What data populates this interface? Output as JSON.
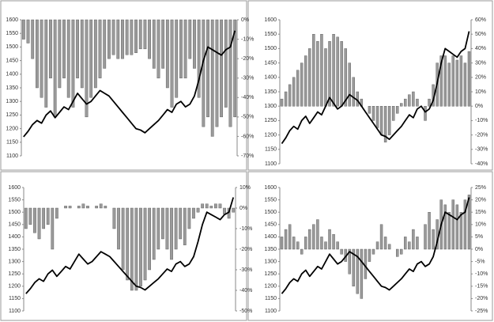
{
  "chart_data": [
    {
      "type": "combo",
      "ylim": [
        1100,
        1600
      ],
      "yticks": [
        1100,
        1150,
        1200,
        1250,
        1300,
        1350,
        1400,
        1450,
        1500,
        1550,
        1600
      ],
      "y2lim": [
        -70,
        0
      ],
      "y2ticks": [
        {
          "value": 0,
          "label": "0%"
        },
        {
          "value": -10,
          "label": "-10%"
        },
        {
          "value": -20,
          "label": "-20%"
        },
        {
          "value": -30,
          "label": "-30%"
        },
        {
          "value": -40,
          "label": "-40%"
        },
        {
          "value": -50,
          "label": "-50%"
        },
        {
          "value": -60,
          "label": "-60%"
        },
        {
          "value": -70,
          "label": "-70%"
        }
      ],
      "series": [
        {
          "type": "line",
          "color": "#000000",
          "values": [
            1170,
            1190,
            1215,
            1230,
            1220,
            1250,
            1265,
            1240,
            1260,
            1280,
            1270,
            1300,
            1330,
            1310,
            1290,
            1300,
            1320,
            1340,
            1330,
            1320,
            1300,
            1280,
            1260,
            1240,
            1220,
            1200,
            1195,
            1185,
            1200,
            1215,
            1230,
            1250,
            1270,
            1260,
            1290,
            1300,
            1280,
            1290,
            1320,
            1380,
            1450,
            1500,
            1490,
            1480,
            1470,
            1490,
            1500,
            1560
          ]
        },
        {
          "type": "bar",
          "axis": "y2",
          "color": "#9a9a9a",
          "values": [
            -10,
            -12,
            -20,
            -35,
            -40,
            -45,
            -30,
            -50,
            -35,
            -30,
            -40,
            -45,
            -30,
            -35,
            -50,
            -40,
            -35,
            -30,
            -25,
            -20,
            -18,
            -20,
            -20,
            -18,
            -18,
            -17,
            -15,
            -15,
            -20,
            -25,
            -30,
            -25,
            -35,
            -45,
            -40,
            -30,
            -30,
            -20,
            -25,
            -40,
            -55,
            -50,
            -60,
            -55,
            -50,
            -45,
            -55,
            -50
          ]
        }
      ]
    },
    {
      "type": "combo",
      "ylim": [
        1100,
        1600
      ],
      "yticks": [
        1100,
        1150,
        1200,
        1250,
        1300,
        1350,
        1400,
        1450,
        1500,
        1550,
        1600
      ],
      "y2lim": [
        -40,
        60
      ],
      "y2ticks": [
        {
          "value": -40,
          "label": "-40%"
        },
        {
          "value": -30,
          "label": "-30%"
        },
        {
          "value": -20,
          "label": "-20%"
        },
        {
          "value": -10,
          "label": "-10%"
        },
        {
          "value": 0,
          "label": "0%"
        },
        {
          "value": 10,
          "label": "10%"
        },
        {
          "value": 20,
          "label": "20%"
        },
        {
          "value": 30,
          "label": "30%"
        },
        {
          "value": 40,
          "label": "40%"
        },
        {
          "value": 50,
          "label": "50%"
        },
        {
          "value": 60,
          "label": "60%"
        }
      ],
      "series": [
        {
          "type": "line",
          "color": "#000000",
          "values": [
            1170,
            1190,
            1215,
            1230,
            1220,
            1250,
            1265,
            1240,
            1260,
            1280,
            1270,
            1300,
            1330,
            1310,
            1290,
            1300,
            1320,
            1340,
            1330,
            1320,
            1300,
            1280,
            1260,
            1240,
            1220,
            1200,
            1195,
            1185,
            1200,
            1215,
            1230,
            1250,
            1270,
            1260,
            1290,
            1300,
            1280,
            1290,
            1320,
            1380,
            1450,
            1500,
            1490,
            1480,
            1470,
            1490,
            1500,
            1560
          ]
        },
        {
          "type": "bar",
          "axis": "y2",
          "color": "#9a9a9a",
          "values": [
            5,
            10,
            15,
            20,
            25,
            30,
            35,
            40,
            50,
            45,
            50,
            40,
            45,
            50,
            48,
            45,
            40,
            30,
            20,
            10,
            5,
            0,
            -5,
            -10,
            -15,
            -20,
            -25,
            -20,
            -10,
            -5,
            2,
            5,
            8,
            10,
            5,
            0,
            -10,
            5,
            15,
            30,
            35,
            35,
            30,
            35,
            32,
            35,
            30,
            38
          ]
        }
      ]
    },
    {
      "type": "combo",
      "ylim": [
        1100,
        1600
      ],
      "yticks": [
        1100,
        1150,
        1200,
        1250,
        1300,
        1350,
        1400,
        1450,
        1500,
        1550,
        1600
      ],
      "y2lim": [
        -50,
        10
      ],
      "y2ticks": [
        {
          "value": 10,
          "label": "10%"
        },
        {
          "value": 0,
          "label": "0%"
        },
        {
          "value": -10,
          "label": "-10%"
        },
        {
          "value": -20,
          "label": "-20%"
        },
        {
          "value": -30,
          "label": "-30%"
        },
        {
          "value": -40,
          "label": "-40%"
        },
        {
          "value": -50,
          "label": "-50%"
        }
      ],
      "series": [
        {
          "type": "line",
          "color": "#000000",
          "values": [
            1170,
            1190,
            1215,
            1230,
            1220,
            1250,
            1265,
            1240,
            1260,
            1280,
            1270,
            1300,
            1330,
            1310,
            1290,
            1300,
            1320,
            1340,
            1330,
            1320,
            1300,
            1280,
            1260,
            1240,
            1220,
            1200,
            1195,
            1185,
            1200,
            1215,
            1230,
            1250,
            1270,
            1260,
            1290,
            1300,
            1280,
            1290,
            1320,
            1380,
            1450,
            1500,
            1490,
            1480,
            1470,
            1490,
            1500,
            1560
          ]
        },
        {
          "type": "bar",
          "axis": "y2",
          "color": "#9a9a9a",
          "values": [
            -10,
            -8,
            -12,
            -15,
            -10,
            -8,
            -20,
            -5,
            0,
            1,
            1,
            0,
            1,
            2,
            1,
            0,
            1,
            2,
            1,
            0,
            -10,
            -20,
            -30,
            -35,
            -40,
            -40,
            -38,
            -35,
            -30,
            -25,
            -20,
            -15,
            -20,
            -25,
            -20,
            -15,
            -18,
            -10,
            -5,
            -2,
            2,
            2,
            1,
            2,
            2,
            -3,
            -5,
            -2
          ]
        }
      ]
    },
    {
      "type": "combo",
      "ylim": [
        1100,
        1600
      ],
      "yticks": [
        1100,
        1150,
        1200,
        1250,
        1300,
        1350,
        1400,
        1450,
        1500,
        1550,
        1600
      ],
      "y2lim": [
        -25,
        25
      ],
      "y2ticks": [
        {
          "value": 25,
          "label": "25%"
        },
        {
          "value": 20,
          "label": "20%"
        },
        {
          "value": 15,
          "label": "15%"
        },
        {
          "value": 10,
          "label": "10%"
        },
        {
          "value": 5,
          "label": "5%"
        },
        {
          "value": 0,
          "label": "0%"
        },
        {
          "value": -5,
          "label": "-5%"
        },
        {
          "value": -10,
          "label": "-10%"
        },
        {
          "value": -15,
          "label": "-15%"
        },
        {
          "value": -20,
          "label": "-20%"
        },
        {
          "value": -25,
          "label": "-25%"
        }
      ],
      "series": [
        {
          "type": "line",
          "color": "#000000",
          "values": [
            1170,
            1190,
            1215,
            1230,
            1220,
            1250,
            1265,
            1240,
            1260,
            1280,
            1270,
            1300,
            1330,
            1310,
            1290,
            1300,
            1320,
            1340,
            1330,
            1320,
            1300,
            1280,
            1260,
            1240,
            1220,
            1200,
            1195,
            1185,
            1200,
            1215,
            1230,
            1250,
            1270,
            1260,
            1290,
            1300,
            1280,
            1290,
            1320,
            1380,
            1450,
            1500,
            1490,
            1480,
            1470,
            1490,
            1500,
            1560
          ]
        },
        {
          "type": "bar",
          "axis": "y2",
          "color": "#9a9a9a",
          "values": [
            5,
            8,
            10,
            5,
            3,
            -2,
            5,
            8,
            10,
            12,
            5,
            3,
            8,
            6,
            3,
            -2,
            -5,
            -10,
            -15,
            -18,
            -20,
            -12,
            -5,
            -2,
            3,
            10,
            5,
            2,
            0,
            -3,
            -2,
            5,
            3,
            8,
            5,
            0,
            10,
            15,
            8,
            12,
            20,
            18,
            15,
            20,
            18,
            15,
            20,
            22
          ]
        }
      ]
    }
  ]
}
